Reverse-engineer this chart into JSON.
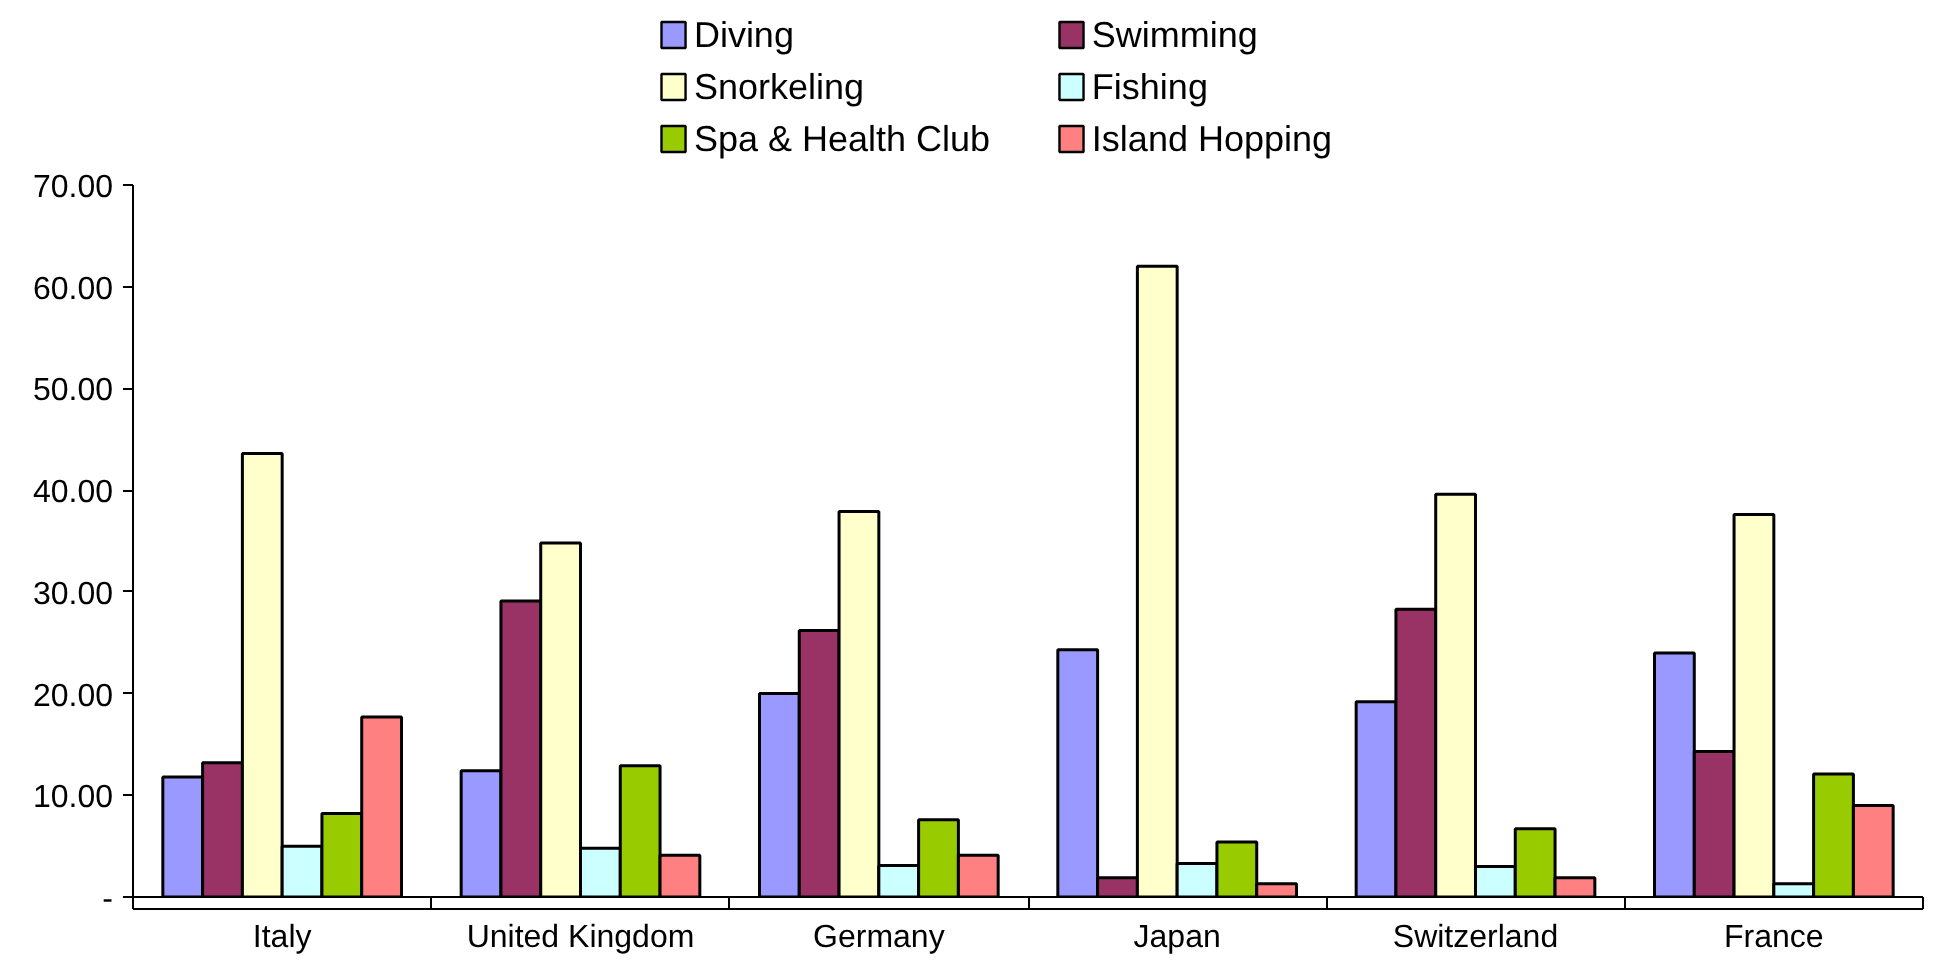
{
  "chart_data": {
    "type": "bar",
    "categories": [
      "Italy",
      "United Kingdom",
      "Germany",
      "Japan",
      "Switzerland",
      "France"
    ],
    "series": [
      {
        "name": "Diving",
        "color": "#9999ff",
        "values": [
          11.8,
          12.4,
          20.0,
          24.3,
          19.2,
          24.0
        ]
      },
      {
        "name": "Swimming",
        "color": "#993366",
        "values": [
          13.2,
          29.1,
          26.2,
          1.9,
          28.3,
          14.3
        ]
      },
      {
        "name": "Snorkeling",
        "color": "#ffffcc",
        "values": [
          43.6,
          34.8,
          37.9,
          62.0,
          39.6,
          37.6
        ]
      },
      {
        "name": "Fishing",
        "color": "#ccffff",
        "values": [
          5.0,
          4.8,
          3.1,
          3.3,
          3.0,
          1.3
        ]
      },
      {
        "name": "Spa & Health Club",
        "color": "#99cc00",
        "values": [
          8.2,
          12.9,
          7.6,
          5.4,
          6.7,
          12.1
        ]
      },
      {
        "name": "Island Hopping",
        "color": "#ff8080",
        "values": [
          17.7,
          4.1,
          4.1,
          1.3,
          1.9,
          9.0
        ]
      }
    ],
    "ylim": [
      0,
      70
    ],
    "yticks": [
      {
        "value": 0,
        "label": "-"
      },
      {
        "value": 10,
        "label": "10.00"
      },
      {
        "value": 20,
        "label": "20.00"
      },
      {
        "value": 30,
        "label": "30.00"
      },
      {
        "value": 40,
        "label": "40.00"
      },
      {
        "value": 50,
        "label": "50.00"
      },
      {
        "value": 60,
        "label": "60.00"
      },
      {
        "value": 70,
        "label": "70.00"
      }
    ],
    "grid": false,
    "legend": "top"
  }
}
